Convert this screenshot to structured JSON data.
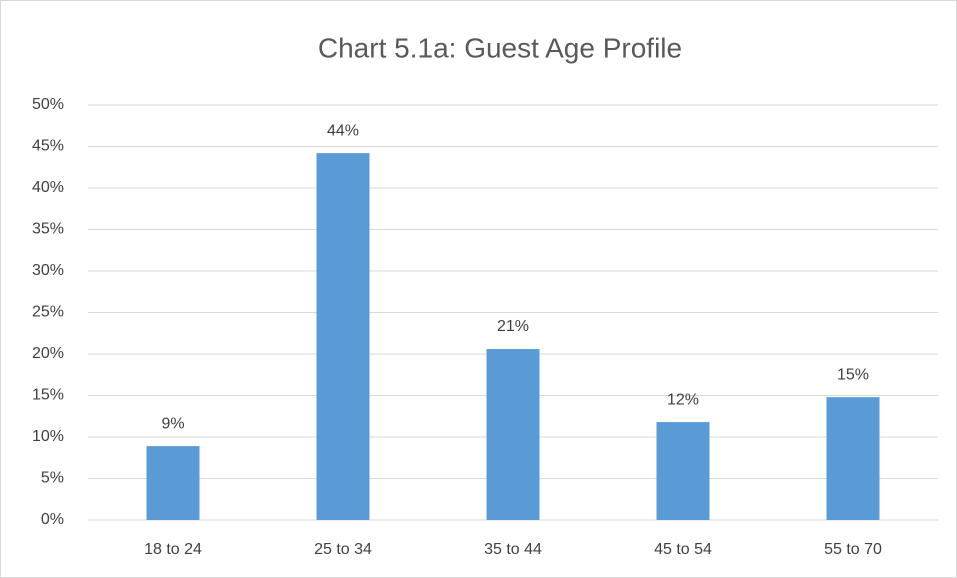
{
  "chart_data": {
    "type": "bar",
    "title": "Chart 5.1a: Guest Age Profile",
    "categories": [
      "18 to 24",
      "25 to 34",
      "35 to 44",
      "45 to 54",
      "55 to 70"
    ],
    "values": [
      8.9,
      44.2,
      20.6,
      11.8,
      14.8
    ],
    "value_labels": [
      "9%",
      "44%",
      "21%",
      "12%",
      "15%"
    ],
    "color": "#5b9bd5",
    "ylim": [
      0,
      50
    ],
    "yticks": [
      {
        "value": 0,
        "label": "0%"
      },
      {
        "value": 5,
        "label": "5%"
      },
      {
        "value": 10,
        "label": "10%"
      },
      {
        "value": 15,
        "label": "15%"
      },
      {
        "value": 20,
        "label": "20%"
      },
      {
        "value": 25,
        "label": "25%"
      },
      {
        "value": 30,
        "label": "30%"
      },
      {
        "value": 35,
        "label": "35%"
      },
      {
        "value": 40,
        "label": "40%"
      },
      {
        "value": 45,
        "label": "45%"
      },
      {
        "value": 50,
        "label": "50%"
      }
    ],
    "grid": true
  }
}
